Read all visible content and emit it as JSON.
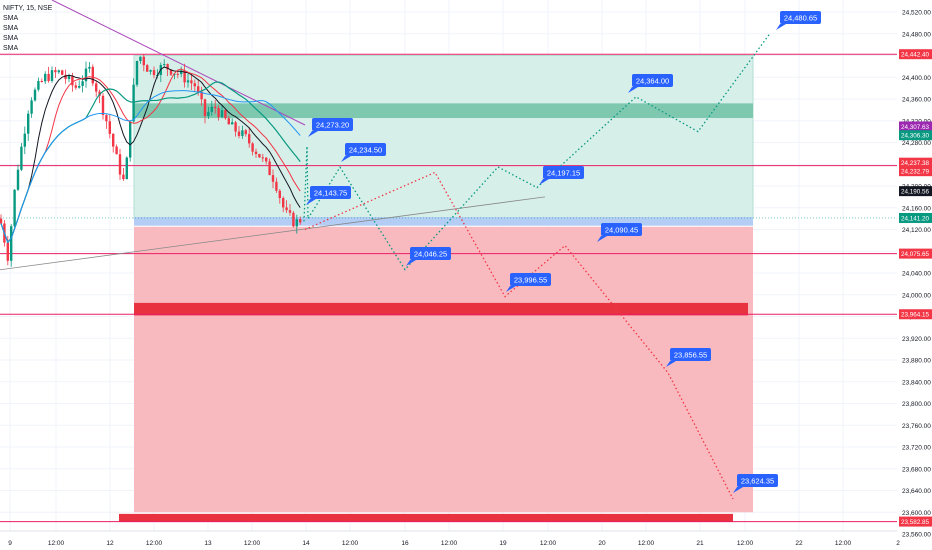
{
  "header": {
    "symbol": "NIFTY, 15, NSE",
    "indicators": [
      "SMA",
      "SMA",
      "SMA",
      "SMA"
    ]
  },
  "chart_data": {
    "type": "line",
    "title": "NIFTY, 15, NSE",
    "ylim": [
      23560,
      24540
    ],
    "y_ticks": [
      24520,
      24480,
      24440,
      24400,
      24360,
      24320,
      24280,
      24240,
      24200,
      24160,
      24120,
      24080,
      24040,
      24000,
      23960,
      23920,
      23880,
      23840,
      23800,
      23760,
      23720,
      23680,
      23640,
      23600,
      23560
    ],
    "x_tick_labels": [
      "9",
      "12:00",
      "12",
      "12:00",
      "13",
      "12:00",
      "14",
      "12:00",
      "16",
      "12:00",
      "19",
      "12:00",
      "20",
      "12:00",
      "21",
      "12:00",
      "22",
      "12:00",
      "2"
    ],
    "horizontal_levels": [
      24442.4,
      24237.38,
      24075.65,
      23964.15,
      23582.85
    ],
    "price_badges": [
      {
        "value": "24,442.40",
        "color": "#f23645"
      },
      {
        "value": "24,307.63",
        "color": "#9c27b0"
      },
      {
        "value": "24,306.30",
        "color": "#089981"
      },
      {
        "value": "24,237.38",
        "color": "#f23645"
      },
      {
        "value": "24,232.79",
        "color": "#f23645"
      },
      {
        "value": "24,190.56",
        "color": "#131722"
      },
      {
        "value": "24,141.20",
        "color": "#089981"
      },
      {
        "value": "24,075.65",
        "color": "#f23645"
      },
      {
        "value": "23,964.15",
        "color": "#f23645"
      },
      {
        "value": "23,582.85",
        "color": "#f23645"
      }
    ],
    "bullish_path": [
      {
        "label": "24,143.75",
        "value": 24143.75
      },
      {
        "label": "24,273.20",
        "value": 24273.2
      },
      {
        "label": "24,234.50",
        "value": 24234.5
      },
      {
        "label": "24,046.25",
        "value": 24046.25
      },
      {
        "label": "24,197.15",
        "value": 24197.15
      },
      {
        "label": "24,364.00",
        "value": 24364.0
      },
      {
        "label": "24,480.65",
        "value": 24480.65
      }
    ],
    "bearish_path": [
      {
        "label": "23,996.55",
        "value": 23996.55
      },
      {
        "label": "24,090.45",
        "value": 24090.45
      },
      {
        "label": "23,856.55",
        "value": 23856.55
      },
      {
        "label": "23,624.35",
        "value": 23624.35
      }
    ],
    "zones": [
      {
        "name": "profit-zone",
        "from": 24140,
        "to": 24440,
        "color": "#d7efe9"
      },
      {
        "name": "loss-zone",
        "from": 23600,
        "to": 24125,
        "color": "#f8b6bc"
      },
      {
        "name": "resistance-band",
        "from": 24325,
        "to": 24352,
        "color": "#7ec8b0"
      },
      {
        "name": "entry-band",
        "from": 24127,
        "to": 24143,
        "color": "#b3cdf5"
      },
      {
        "name": "support-band",
        "from": 23962,
        "to": 23985,
        "color": "#e8323f"
      },
      {
        "name": "target-band",
        "from": 23582,
        "to": 23597,
        "color": "#e8323f"
      }
    ],
    "colors": {
      "up": "#089981",
      "down": "#f23645",
      "label_bg": "#2962ff",
      "bull_path": "#089981",
      "bear_path": "#f23645"
    }
  }
}
